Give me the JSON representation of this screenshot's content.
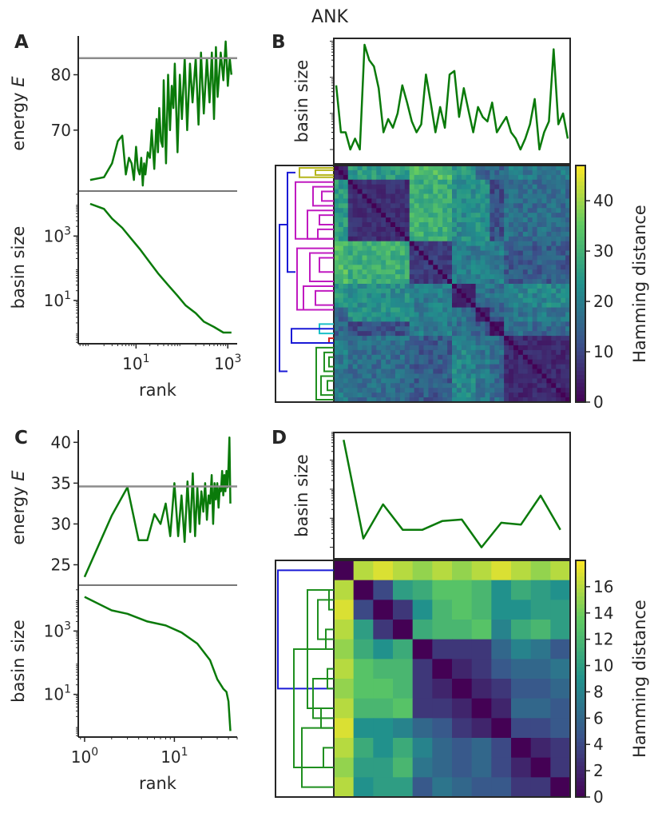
{
  "colors": {
    "trace": "#0a7a0a",
    "threshold": "#8c8c8c",
    "axis": "#262626",
    "dendro_blue": "#1a1ad6",
    "dendro_green": "#1f8f1f",
    "dendro_olive": "#b5b51a",
    "dendro_magenta": "#c01ac0",
    "dendro_cyan": "#1ac0c8",
    "dendro_red": "#d62020"
  },
  "chart_data": [
    {
      "panel": "A-top",
      "label": "A",
      "type": "line",
      "xscale": "log",
      "xlim": [
        0.55,
        1600
      ],
      "ylim": [
        59,
        87
      ],
      "yticks": [
        70,
        80
      ],
      "yticklabels": [
        "70",
        "80"
      ],
      "ylabel_prefix": "energy ",
      "ylabel_var": "E",
      "threshold": 83,
      "x": [
        1,
        2,
        3,
        4,
        5,
        6,
        7,
        8,
        9,
        10,
        11,
        12,
        13,
        14,
        15,
        16,
        18,
        20,
        22,
        25,
        28,
        30,
        32,
        35,
        38,
        40,
        45,
        50,
        55,
        60,
        65,
        70,
        80,
        90,
        100,
        115,
        130,
        150,
        170,
        200,
        230,
        260,
        300,
        350,
        400,
        450,
        500,
        550,
        600,
        700,
        800,
        900,
        1000,
        1100,
        1200
      ],
      "y": [
        61,
        61.5,
        64,
        68,
        69,
        62,
        65,
        64,
        61,
        67,
        63,
        62,
        65,
        60,
        64,
        62,
        66,
        65,
        70,
        63,
        72,
        66,
        74,
        68,
        67,
        79,
        64,
        80,
        70,
        78,
        74,
        82,
        66,
        80,
        72,
        83,
        70,
        82,
        75,
        83,
        71,
        84,
        73,
        83,
        75,
        84,
        72,
        85,
        76,
        84,
        79,
        86,
        78,
        83,
        80
      ]
    },
    {
      "panel": "A-bottom",
      "type": "line",
      "xscale": "log",
      "yscale": "log",
      "xlim": [
        0.55,
        1600
      ],
      "ylim": [
        0.45,
        25000
      ],
      "xticks": [
        10,
        1000
      ],
      "xticklabels": [
        "10^1",
        "10^3"
      ],
      "yticks": [
        10,
        1000
      ],
      "yticklabels": [
        "10^1",
        "10^3"
      ],
      "xlabel": "rank",
      "ylabel": "basin size",
      "x": [
        1,
        2,
        3,
        5,
        8,
        12,
        20,
        30,
        50,
        80,
        120,
        200,
        300,
        500,
        800,
        1200
      ],
      "y": [
        10000,
        7000,
        3500,
        1800,
        800,
        400,
        150,
        70,
        30,
        14,
        7,
        4,
        2.2,
        1.5,
        1,
        1
      ]
    },
    {
      "panel": "B",
      "label": "B",
      "type": "heatmap",
      "title": "ANK",
      "top_ylabel": "basin size",
      "colorbar_label": "Hamming distance",
      "vmin": 0,
      "vmax": 47,
      "colorbar_ticks": [
        0,
        10,
        20,
        30,
        40
      ],
      "n": 50,
      "blocks": [
        [
          0,
          3,
          4,
          20
        ],
        [
          3,
          16,
          4,
          18
        ],
        [
          16,
          25,
          6,
          22
        ],
        [
          25,
          30,
          3,
          12
        ],
        [
          30,
          33,
          2,
          10
        ],
        [
          33,
          36,
          1,
          6
        ],
        [
          36,
          50,
          3,
          8
        ]
      ],
      "basin_sizes": [
        60,
        3,
        3,
        1,
        2,
        1,
        800,
        300,
        200,
        50,
        3,
        7,
        4,
        10,
        60,
        20,
        6,
        3,
        5,
        120,
        20,
        3,
        15,
        4,
        120,
        150,
        8,
        50,
        12,
        3,
        15,
        8,
        6,
        20,
        3,
        5,
        8,
        3,
        2,
        1,
        2,
        5,
        25,
        1,
        3,
        6,
        600,
        5,
        10,
        2
      ]
    },
    {
      "panel": "C-top",
      "label": "C",
      "type": "line",
      "xscale": "log",
      "xlim": [
        0.85,
        50
      ],
      "ylim": [
        22.5,
        41.5
      ],
      "yticks": [
        25,
        30,
        35,
        40
      ],
      "yticklabels": [
        "25",
        "30",
        "35",
        "40"
      ],
      "ylabel_prefix": "energy ",
      "ylabel_var": "E",
      "threshold": 34.6,
      "x": [
        1,
        2,
        3,
        4,
        5,
        6,
        7,
        8,
        9,
        10,
        11,
        12,
        13,
        14,
        15,
        16,
        17,
        18,
        19,
        20,
        21,
        22,
        23,
        24,
        25,
        26,
        27,
        28,
        29,
        30,
        31,
        32,
        33,
        34,
        35,
        36,
        37,
        38,
        39,
        40,
        41,
        42
      ],
      "y": [
        23.5,
        31,
        34.5,
        28,
        28,
        31.2,
        30,
        32.5,
        28.5,
        35,
        28.5,
        33.5,
        27.8,
        35.2,
        29,
        36.2,
        28.5,
        34.5,
        30,
        34,
        31.5,
        35,
        30.5,
        33.5,
        32.5,
        36,
        30,
        35,
        33,
        35,
        32,
        34.5,
        34,
        36.5,
        33.5,
        36,
        34,
        36.5,
        34.5,
        37,
        40.6,
        32.5
      ]
    },
    {
      "panel": "C-bottom",
      "type": "line",
      "xscale": "log",
      "yscale": "log",
      "xlim": [
        0.85,
        50
      ],
      "ylim": [
        0.45,
        28000
      ],
      "xticks": [
        1,
        10
      ],
      "xticklabels": [
        "10^0",
        "10^1"
      ],
      "yticks": [
        10,
        1000
      ],
      "yticklabels": [
        "10^1",
        "10^3"
      ],
      "xlabel": "rank",
      "ylabel": "basin size",
      "x": [
        1,
        2,
        3,
        5,
        8,
        12,
        18,
        25,
        30,
        35,
        38,
        40,
        42
      ],
      "y": [
        12000,
        4500,
        3500,
        2000,
        1500,
        900,
        400,
        120,
        30,
        15,
        12,
        6,
        0.7
      ]
    },
    {
      "panel": "D",
      "label": "D",
      "type": "heatmap",
      "top_ylabel": "basin size",
      "colorbar_label": "Hamming distance",
      "vmin": 0,
      "vmax": 18,
      "colorbar_ticks": [
        0,
        2,
        4,
        6,
        8,
        10,
        12,
        14,
        16
      ],
      "matrix": [
        [
          0,
          16,
          17,
          16,
          15,
          16,
          15,
          16,
          17,
          16,
          15,
          16
        ],
        [
          16,
          0,
          4,
          10,
          11,
          13,
          13,
          12,
          9,
          11,
          10,
          9
        ],
        [
          17,
          4,
          0,
          3,
          9,
          12,
          13,
          12,
          9,
          9,
          10,
          10
        ],
        [
          16,
          10,
          3,
          0,
          11,
          12,
          12,
          13,
          8,
          11,
          12,
          10
        ],
        [
          15,
          11,
          9,
          11,
          0,
          3,
          3,
          3,
          6,
          8,
          7,
          5
        ],
        [
          16,
          13,
          12,
          12,
          3,
          0,
          2,
          3,
          5,
          6,
          6,
          7
        ],
        [
          15,
          13,
          13,
          12,
          3,
          2,
          0,
          2,
          3,
          5,
          5,
          6
        ],
        [
          16,
          12,
          12,
          13,
          3,
          3,
          2,
          0,
          2,
          6,
          6,
          5
        ],
        [
          17,
          9,
          9,
          8,
          6,
          5,
          3,
          2,
          0,
          4,
          4,
          5
        ],
        [
          16,
          11,
          9,
          11,
          8,
          6,
          5,
          6,
          4,
          0,
          2,
          3
        ],
        [
          15,
          10,
          10,
          12,
          7,
          6,
          5,
          6,
          4,
          2,
          0,
          3
        ],
        [
          16,
          9,
          10,
          10,
          5,
          7,
          6,
          5,
          5,
          3,
          3,
          0
        ]
      ],
      "basin_sizes": [
        5000,
        2,
        30,
        4,
        4,
        8,
        9,
        1,
        7,
        6,
        60,
        4
      ]
    }
  ]
}
